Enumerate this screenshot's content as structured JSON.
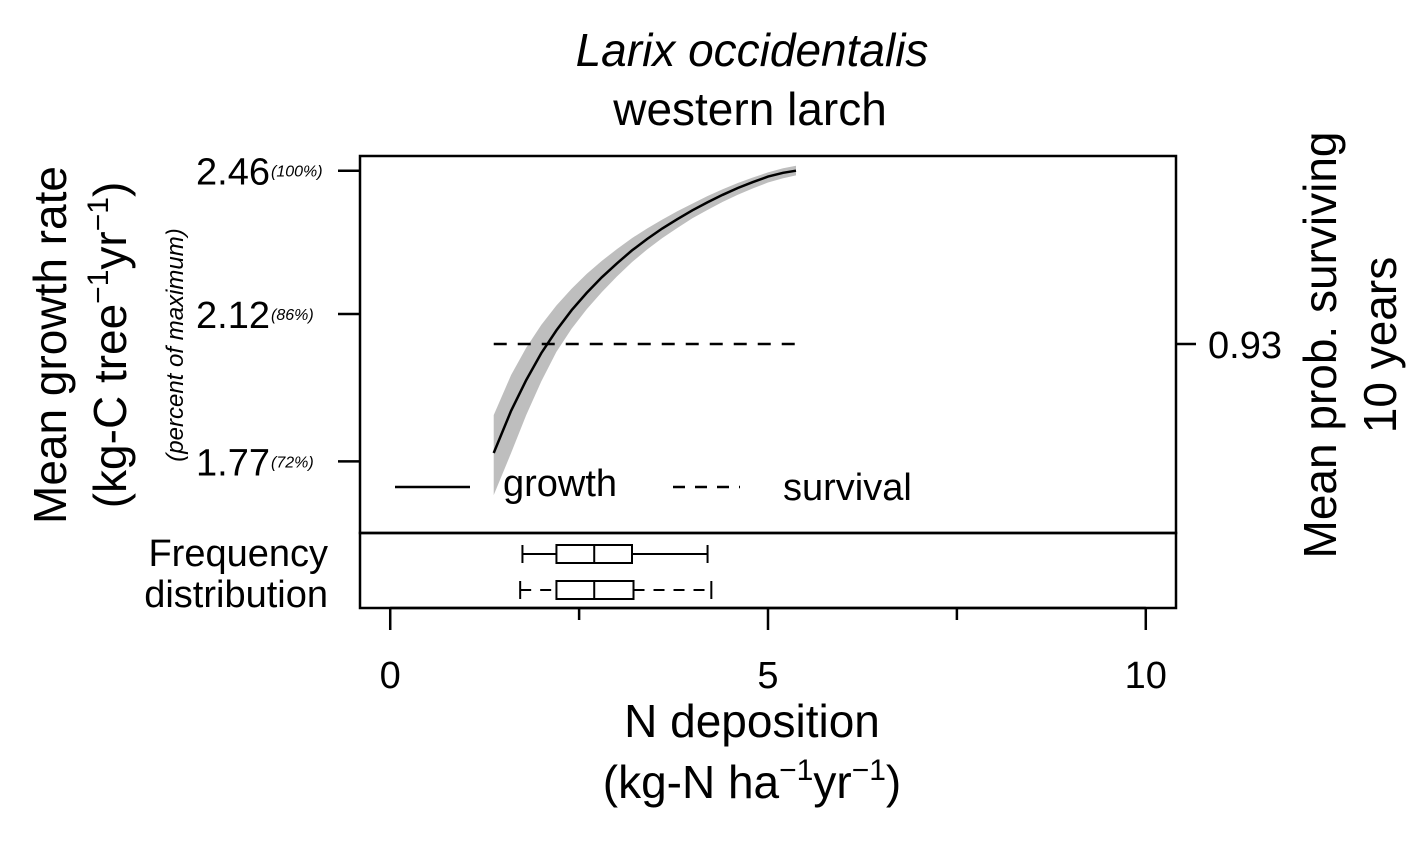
{
  "chart_data": {
    "type": "line",
    "title": "Larix occidentalis",
    "subtitle": "western larch",
    "xlabel": "N deposition",
    "xunit": {
      "base": "(kg-N ha",
      "sup1": "−1",
      "mid": "yr",
      "sup2": "−1",
      "end": ")"
    },
    "xlim": [
      -0.4,
      10.4
    ],
    "xticks": [
      0,
      5,
      10
    ],
    "xtick_labels": [
      "0",
      "5",
      "10"
    ],
    "xminor_ticks": [
      2.5,
      7.5
    ],
    "ylabel": "Mean growth rate",
    "yunit": {
      "base": "(kg-C tree",
      "sup1": "−1",
      "mid": "yr",
      "sup2": "−1",
      "end": ")"
    },
    "ylabel_pct": "(percent of maximum)",
    "ylim": [
      1.6,
      2.495
    ],
    "yticks": [
      {
        "value": 2.46,
        "label": "2.46",
        "pct": "(100%)"
      },
      {
        "value": 2.12,
        "label": "2.12",
        "pct": "(86%)"
      },
      {
        "value": 1.77,
        "label": "1.77",
        "pct": "(72%)"
      }
    ],
    "y2label_line1": "Mean prob. surviving",
    "y2label_line2": "10 years",
    "y2ticks": [
      {
        "value": 0.93,
        "label": "0.93"
      }
    ],
    "series": [
      {
        "name": "growth",
        "style": "solid",
        "x": [
          1.37,
          1.6,
          1.8,
          2.0,
          2.2,
          2.4,
          2.6,
          2.8,
          3.0,
          3.2,
          3.4,
          3.6,
          3.8,
          4.0,
          4.2,
          4.4,
          4.6,
          4.8,
          5.0,
          5.2,
          5.37
        ],
        "y": [
          1.79,
          1.89,
          1.963,
          2.027,
          2.081,
          2.129,
          2.17,
          2.207,
          2.24,
          2.271,
          2.298,
          2.323,
          2.345,
          2.366,
          2.385,
          2.403,
          2.419,
          2.433,
          2.446,
          2.455,
          2.46
        ],
        "ci_lower": [
          1.69,
          1.79,
          1.88,
          1.96,
          2.03,
          2.085,
          2.131,
          2.172,
          2.209,
          2.243,
          2.273,
          2.3,
          2.324,
          2.347,
          2.367,
          2.386,
          2.403,
          2.418,
          2.432,
          2.442,
          2.449
        ],
        "ci_upper": [
          1.88,
          1.975,
          2.04,
          2.094,
          2.14,
          2.18,
          2.215,
          2.246,
          2.274,
          2.3,
          2.323,
          2.344,
          2.364,
          2.382,
          2.4,
          2.416,
          2.431,
          2.444,
          2.456,
          2.466,
          2.472
        ]
      },
      {
        "name": "survival",
        "style": "dashed",
        "x": [
          1.37,
          5.37
        ],
        "y2": [
          0.93,
          0.93
        ]
      }
    ],
    "boxplots_label_line1": "Frequency",
    "boxplots_label_line2": "distribution",
    "boxplots": [
      {
        "whisker_style": "solid",
        "min": 1.75,
        "q1": 2.2,
        "median": 2.7,
        "q3": 3.2,
        "max": 4.2
      },
      {
        "whisker_style": "dashed",
        "min": 1.72,
        "q1": 2.2,
        "median": 2.7,
        "q3": 3.22,
        "max": 4.25
      }
    ],
    "legend": {
      "position": "bottom-left",
      "entries": [
        "growth",
        "survival"
      ]
    },
    "grid": false,
    "colors": {
      "line": "#000000",
      "ci_band": "#bebebe",
      "pct_text": "#555555"
    }
  }
}
